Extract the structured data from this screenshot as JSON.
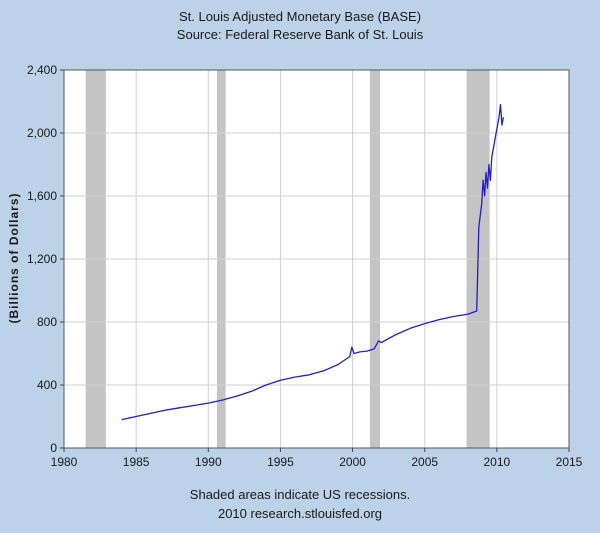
{
  "chart_data": {
    "type": "line",
    "title": "St. Louis Adjusted Monetary Base (BASE)",
    "subtitle": "Source: Federal Reserve Bank of St. Louis",
    "xlabel": "",
    "ylabel": "(Billions of Dollars)",
    "xlim": [
      1980,
      2015
    ],
    "ylim": [
      0,
      2400
    ],
    "xticks": [
      "1980",
      "1985",
      "1990",
      "1995",
      "2000",
      "2005",
      "2010",
      "2015"
    ],
    "yticks": [
      "0",
      "400",
      "800",
      "1,200",
      "1,600",
      "2,000",
      "2,400"
    ],
    "grid": true,
    "recessions": [
      [
        1981.5,
        1982.9
      ],
      [
        1990.6,
        1991.2
      ],
      [
        2001.2,
        2001.9
      ],
      [
        2007.9,
        2009.5
      ]
    ],
    "series": [
      {
        "color": "#1f1fd0",
        "x": [
          1984.0,
          1985.0,
          1986.0,
          1987.0,
          1988.0,
          1989.0,
          1990.0,
          1991.0,
          1992.0,
          1993.0,
          1994.0,
          1995.0,
          1996.0,
          1997.0,
          1998.0,
          1999.0,
          1999.8,
          1999.95,
          2000.1,
          2000.5,
          2001.0,
          2001.5,
          2001.8,
          2002.0,
          2003.0,
          2004.0,
          2005.0,
          2006.0,
          2007.0,
          2008.0,
          2008.6,
          2008.75,
          2008.85,
          2008.95,
          2009.05,
          2009.15,
          2009.25,
          2009.35,
          2009.45,
          2009.55,
          2009.65,
          2009.75,
          2009.85,
          2009.95,
          2010.05,
          2010.15,
          2010.25,
          2010.35,
          2010.45
        ],
        "y": [
          180,
          200,
          220,
          240,
          255,
          270,
          285,
          305,
          330,
          360,
          400,
          430,
          450,
          465,
          490,
          530,
          580,
          640,
          600,
          610,
          615,
          630,
          680,
          670,
          720,
          760,
          790,
          815,
          835,
          850,
          870,
          1400,
          1480,
          1550,
          1700,
          1600,
          1750,
          1650,
          1800,
          1700,
          1850,
          1900,
          1950,
          2000,
          2050,
          2100,
          2180,
          2050,
          2100
        ]
      }
    ]
  },
  "footer": {
    "line1": "Shaded areas indicate US recessions.",
    "line2": "2010 research.stlouisfed.org"
  }
}
